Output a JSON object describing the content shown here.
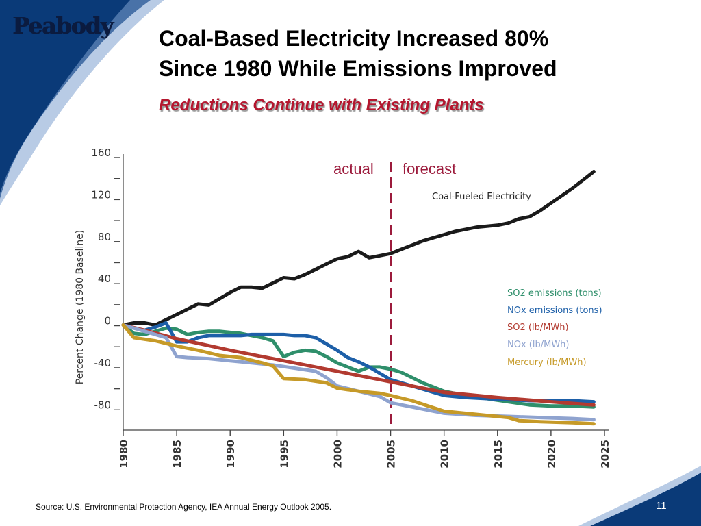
{
  "slide": {
    "logo_text": "Peabody",
    "title_line1": "Coal-Based Electricity Increased 80%",
    "title_line2": "Since 1980 While Emissions Improved",
    "subtitle": "Reductions Continue with Existing Plants",
    "source": "Source:  U.S. Environmental Protection Agency, IEA Annual Energy Outlook 2005.",
    "page_number": "11",
    "colors": {
      "navy": "#0a3a78",
      "accent_red": "#b4162e",
      "divider": "#9c1b3c"
    }
  },
  "chart_data": {
    "type": "line",
    "title": "",
    "xlabel": "",
    "ylabel": "Percent Change (1980 Baseline)",
    "xlim": [
      1980,
      2025
    ],
    "ylim": [
      -100,
      160
    ],
    "x_ticks": [
      1980,
      1985,
      1990,
      1995,
      2000,
      2005,
      2010,
      2015,
      2020,
      2025
    ],
    "y_ticks": [
      160,
      120,
      80,
      40,
      0,
      -40,
      -80
    ],
    "grid": false,
    "legend_position": "right-middle",
    "divider_year": 2005,
    "divider_labels": {
      "left": "actual",
      "right": "forecast"
    },
    "series": [
      {
        "name": "Coal-Fueled Electricity",
        "color": "#1a1a1a",
        "x": [
          1980,
          1981,
          1982,
          1983,
          1984,
          1985,
          1986,
          1987,
          1988,
          1989,
          1990,
          1991,
          1992,
          1993,
          1994,
          1995,
          1996,
          1997,
          1998,
          1999,
          2000,
          2001,
          2002,
          2003,
          2004,
          2005,
          2006,
          2007,
          2008,
          2009,
          2010,
          2011,
          2012,
          2013,
          2014,
          2015,
          2016,
          2017,
          2018,
          2019,
          2020,
          2021,
          2022,
          2023,
          2024
        ],
        "values": [
          0,
          2,
          2,
          0,
          5,
          10,
          15,
          20,
          19,
          25,
          31,
          36,
          36,
          35,
          40,
          45,
          44,
          48,
          53,
          58,
          63,
          65,
          70,
          64,
          66,
          68,
          72,
          76,
          80,
          83,
          86,
          89,
          91,
          93,
          94,
          95,
          97,
          101,
          103,
          109,
          116,
          123,
          130,
          138,
          146
        ]
      },
      {
        "name": "SO2 emissions (tons)",
        "color": "#2f8f6b",
        "x": [
          1980,
          1981,
          1982,
          1983,
          1984,
          1985,
          1986,
          1987,
          1988,
          1989,
          1990,
          1991,
          1992,
          1993,
          1994,
          1995,
          1996,
          1997,
          1998,
          1999,
          2000,
          2001,
          2002,
          2003,
          2004,
          2005,
          2006,
          2008,
          2010,
          2012,
          2014,
          2016,
          2018,
          2020,
          2022,
          2024
        ],
        "values": [
          0,
          -8,
          -9,
          -6,
          -3,
          -4,
          -9,
          -7,
          -6,
          -6,
          -7,
          -8,
          -10,
          -12,
          -15,
          -30,
          -26,
          -24,
          -25,
          -30,
          -36,
          -40,
          -44,
          -40,
          -40,
          -42,
          -45,
          -55,
          -63,
          -67,
          -70,
          -73,
          -76,
          -77,
          -77,
          -78
        ]
      },
      {
        "name": "NOx emissions (tons)",
        "color": "#1d5fa8",
        "x": [
          1980,
          1981,
          1982,
          1983,
          1984,
          1985,
          1986,
          1987,
          1988,
          1989,
          1990,
          1991,
          1992,
          1993,
          1994,
          1995,
          1996,
          1997,
          1998,
          1999,
          2000,
          2001,
          2002,
          2003,
          2004,
          2005,
          2006,
          2008,
          2010,
          2012,
          2014,
          2016,
          2018,
          2020,
          2022,
          2024
        ],
        "values": [
          0,
          -3,
          -5,
          -2,
          2,
          -16,
          -16,
          -12,
          -10,
          -10,
          -10,
          -10,
          -9,
          -9,
          -9,
          -9,
          -10,
          -10,
          -12,
          -18,
          -24,
          -31,
          -35,
          -40,
          -46,
          -52,
          -55,
          -61,
          -67,
          -69,
          -70,
          -71,
          -72,
          -72,
          -72,
          -73
        ]
      },
      {
        "name": "SO2 (lb/MWh)",
        "color": "#b23a30",
        "x": [
          1980,
          1982,
          1985,
          1990,
          1995,
          2000,
          2005,
          2010,
          2015,
          2020,
          2024
        ],
        "values": [
          0,
          -5,
          -13,
          -24,
          -34,
          -44,
          -54,
          -64,
          -69,
          -73,
          -76
        ]
      },
      {
        "name": "NOx (lb/MWh)",
        "color": "#8fa3cf",
        "x": [
          1980,
          1982,
          1984,
          1985,
          1986,
          1988,
          1990,
          1992,
          1994,
          1996,
          1998,
          1999,
          2000,
          2002,
          2004,
          2005,
          2007,
          2010,
          2013,
          2016,
          2019,
          2022,
          2024
        ],
        "values": [
          0,
          -6,
          -12,
          -30,
          -31,
          -32,
          -34,
          -36,
          -38,
          -41,
          -44,
          -50,
          -58,
          -63,
          -68,
          -74,
          -78,
          -84,
          -86,
          -87,
          -88,
          -89,
          -90
        ]
      },
      {
        "name": "Mercury (lb/MWh)",
        "color": "#c69a28",
        "x": [
          1980,
          1981,
          1983,
          1985,
          1987,
          1989,
          1991,
          1993,
          1994,
          1995,
          1997,
          1999,
          2000,
          2002,
          2004,
          2005,
          2007,
          2010,
          2013,
          2016,
          2017,
          2019,
          2022,
          2024
        ],
        "values": [
          0,
          -12,
          -15,
          -20,
          -24,
          -29,
          -31,
          -36,
          -39,
          -51,
          -52,
          -55,
          -60,
          -63,
          -65,
          -67,
          -72,
          -82,
          -85,
          -88,
          -91,
          -92,
          -93,
          -94
        ]
      }
    ]
  }
}
